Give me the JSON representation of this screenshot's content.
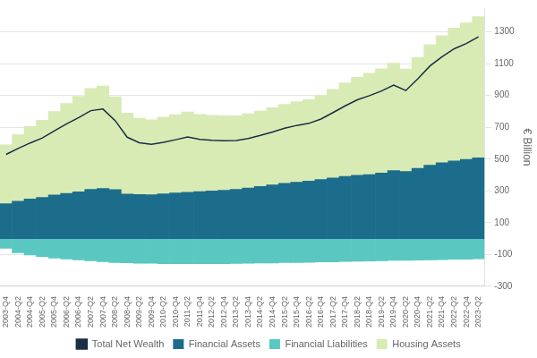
{
  "chart_data": {
    "type": "bar",
    "stacked": true,
    "ylabel": "€ Billion",
    "categories": [
      "2003-Q4",
      "2004-Q2",
      "2004-Q4",
      "2005-Q2",
      "2005-Q4",
      "2006-Q2",
      "2006-Q4",
      "2007-Q2",
      "2007-Q4",
      "2008-Q2",
      "2008-Q4",
      "2009-Q2",
      "2009-Q4",
      "2010-Q2",
      "2010-Q4",
      "2011-Q2",
      "2011-Q4",
      "2012-Q2",
      "2012-Q4",
      "2013-Q2",
      "2013-Q4",
      "2014-Q2",
      "2014-Q4",
      "2015-Q2",
      "2015-Q4",
      "2016-Q2",
      "2016-Q4",
      "2017-Q2",
      "2017-Q4",
      "2018-Q2",
      "2018-Q4",
      "2019-Q2",
      "2019-Q4",
      "2020-Q2",
      "2020-Q4",
      "2021-Q2",
      "2021-Q4",
      "2022-Q2",
      "2022-Q4",
      "2023-Q2"
    ],
    "series": [
      {
        "name": "Financial Assets",
        "type": "bar",
        "color": "#1c6d8c",
        "values": [
          220,
          235,
          250,
          260,
          275,
          285,
          295,
          310,
          315,
          308,
          280,
          278,
          276,
          282,
          288,
          292,
          296,
          300,
          305,
          310,
          318,
          328,
          338,
          348,
          355,
          362,
          372,
          382,
          392,
          398,
          403,
          413,
          428,
          422,
          442,
          462,
          478,
          488,
          498,
          508
        ]
      },
      {
        "name": "Financial Liabilities",
        "type": "bar",
        "color": "#5ac8c0",
        "values": [
          -60,
          -88,
          -103,
          -112,
          -122,
          -128,
          -134,
          -140,
          -145,
          -150,
          -152,
          -155,
          -155,
          -158,
          -158,
          -158,
          -157,
          -157,
          -157,
          -156,
          -155,
          -154,
          -153,
          -151,
          -150,
          -149,
          -147,
          -146,
          -144,
          -142,
          -141,
          -139,
          -137,
          -136,
          -135,
          -134,
          -132,
          -130,
          -129,
          -127
        ]
      },
      {
        "name": "Housing Assets",
        "type": "bar",
        "color": "#d8ebb5",
        "values": [
          370,
          420,
          455,
          485,
          525,
          565,
          600,
          635,
          645,
          585,
          510,
          480,
          472,
          482,
          492,
          505,
          485,
          475,
          468,
          463,
          467,
          475,
          486,
          497,
          507,
          512,
          527,
          557,
          587,
          617,
          637,
          655,
          675,
          645,
          698,
          758,
          798,
          836,
          858,
          888
        ]
      },
      {
        "name": "Total Net Wealth",
        "type": "line",
        "color": "#1a2e44",
        "values": [
          530,
          567,
          602,
          633,
          678,
          722,
          761,
          805,
          815,
          743,
          638,
          603,
          593,
          606,
          622,
          639,
          624,
          618,
          616,
          617,
          630,
          649,
          671,
          694,
          712,
          725,
          752,
          793,
          835,
          873,
          899,
          929,
          966,
          931,
          1005,
          1086,
          1144,
          1194,
          1227,
          1269
        ]
      }
    ],
    "ylim": [
      -300,
      1450
    ],
    "yticks": [
      -300,
      -100,
      100,
      300,
      500,
      700,
      900,
      1100,
      1300
    ],
    "grid": true,
    "legend": "bottom"
  }
}
